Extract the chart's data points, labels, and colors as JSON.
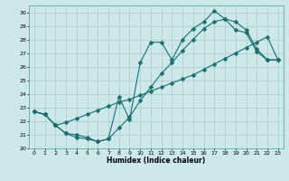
{
  "xlabel": "Humidex (Indice chaleur)",
  "bg_color": "#cce8e8",
  "grid_color": "#aacccc",
  "line_color": "#1a6e6e",
  "xlim": [
    -0.5,
    23.5
  ],
  "ylim": [
    20,
    30.5
  ],
  "xticks": [
    0,
    1,
    2,
    3,
    4,
    5,
    6,
    7,
    8,
    9,
    10,
    11,
    12,
    13,
    14,
    15,
    16,
    17,
    18,
    19,
    20,
    21,
    22,
    23
  ],
  "yticks": [
    20,
    21,
    22,
    23,
    24,
    25,
    26,
    27,
    28,
    29,
    30
  ],
  "line1_x": [
    0,
    1,
    2,
    3,
    4,
    5,
    6,
    7,
    8,
    9,
    10,
    11,
    12,
    13,
    14,
    15,
    16,
    17,
    18,
    19,
    20,
    21,
    22,
    23
  ],
  "line1_y": [
    22.7,
    22.5,
    21.7,
    21.1,
    20.8,
    20.7,
    20.5,
    20.7,
    23.8,
    22.1,
    26.3,
    27.8,
    27.8,
    26.5,
    28.0,
    28.8,
    29.3,
    30.1,
    29.5,
    29.3,
    28.7,
    27.3,
    26.5,
    26.5
  ],
  "line2_x": [
    0,
    1,
    2,
    3,
    4,
    5,
    6,
    7,
    8,
    9,
    10,
    11,
    12,
    13,
    14,
    15,
    16,
    17,
    18,
    19,
    20,
    21,
    22,
    23
  ],
  "line2_y": [
    22.7,
    22.5,
    21.7,
    21.9,
    22.2,
    22.5,
    22.8,
    23.1,
    23.4,
    23.6,
    23.9,
    24.2,
    24.5,
    24.8,
    25.1,
    25.4,
    25.8,
    26.2,
    26.6,
    27.0,
    27.4,
    27.8,
    28.2,
    26.5
  ],
  "line3_x": [
    0,
    1,
    2,
    3,
    4,
    5,
    6,
    7,
    8,
    9,
    10,
    11,
    12,
    13,
    14,
    15,
    16,
    17,
    18,
    19,
    20,
    21,
    22,
    23
  ],
  "line3_y": [
    22.7,
    22.5,
    21.7,
    21.1,
    21.0,
    20.8,
    20.5,
    20.7,
    21.5,
    22.3,
    23.5,
    24.5,
    25.5,
    26.3,
    27.2,
    28.0,
    28.8,
    29.3,
    29.5,
    28.7,
    28.5,
    27.1,
    26.5,
    26.5
  ]
}
